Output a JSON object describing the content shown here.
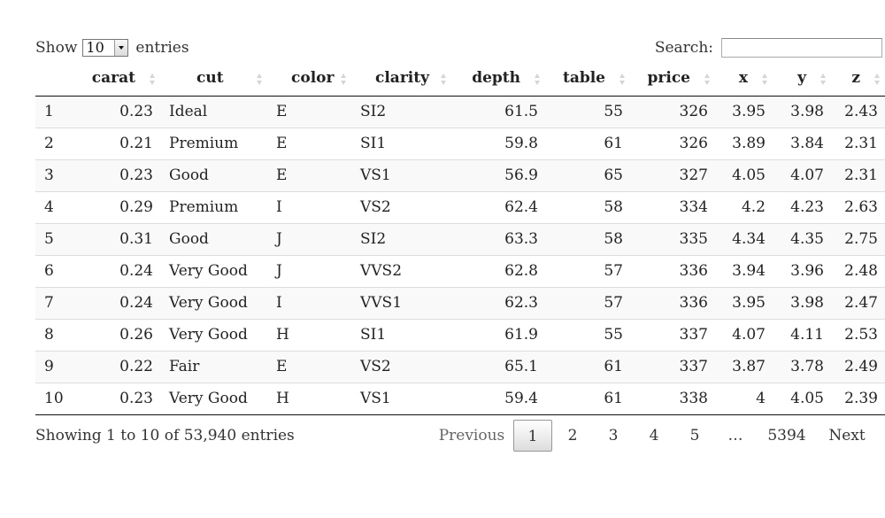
{
  "length_menu": {
    "show_label": "Show",
    "value": "10",
    "entries_label": "entries"
  },
  "search": {
    "label": "Search:",
    "value": ""
  },
  "table": {
    "columns": [
      {
        "label": ""
      },
      {
        "label": "carat"
      },
      {
        "label": "cut"
      },
      {
        "label": "color"
      },
      {
        "label": "clarity"
      },
      {
        "label": "depth"
      },
      {
        "label": "table"
      },
      {
        "label": "price"
      },
      {
        "label": "x"
      },
      {
        "label": "y"
      },
      {
        "label": "z"
      }
    ],
    "rows": [
      [
        "1",
        "0.23",
        "Ideal",
        "E",
        "SI2",
        "61.5",
        "55",
        "326",
        "3.95",
        "3.98",
        "2.43"
      ],
      [
        "2",
        "0.21",
        "Premium",
        "E",
        "SI1",
        "59.8",
        "61",
        "326",
        "3.89",
        "3.84",
        "2.31"
      ],
      [
        "3",
        "0.23",
        "Good",
        "E",
        "VS1",
        "56.9",
        "65",
        "327",
        "4.05",
        "4.07",
        "2.31"
      ],
      [
        "4",
        "0.29",
        "Premium",
        "I",
        "VS2",
        "62.4",
        "58",
        "334",
        "4.2",
        "4.23",
        "2.63"
      ],
      [
        "5",
        "0.31",
        "Good",
        "J",
        "SI2",
        "63.3",
        "58",
        "335",
        "4.34",
        "4.35",
        "2.75"
      ],
      [
        "6",
        "0.24",
        "Very Good",
        "J",
        "VVS2",
        "62.8",
        "57",
        "336",
        "3.94",
        "3.96",
        "2.48"
      ],
      [
        "7",
        "0.24",
        "Very Good",
        "I",
        "VVS1",
        "62.3",
        "57",
        "336",
        "3.95",
        "3.98",
        "2.47"
      ],
      [
        "8",
        "0.26",
        "Very Good",
        "H",
        "SI1",
        "61.9",
        "55",
        "337",
        "4.07",
        "4.11",
        "2.53"
      ],
      [
        "9",
        "0.22",
        "Fair",
        "E",
        "VS2",
        "65.1",
        "61",
        "337",
        "3.87",
        "3.78",
        "2.49"
      ],
      [
        "10",
        "0.23",
        "Very Good",
        "H",
        "VS1",
        "59.4",
        "61",
        "338",
        "4",
        "4.05",
        "2.39"
      ]
    ]
  },
  "info": "Showing 1 to 10 of 53,940 entries",
  "pagination": {
    "previous": "Previous",
    "pages": [
      "1",
      "2",
      "3",
      "4",
      "5"
    ],
    "current": "1",
    "ellipsis": "…",
    "last": "5394",
    "next": "Next"
  }
}
